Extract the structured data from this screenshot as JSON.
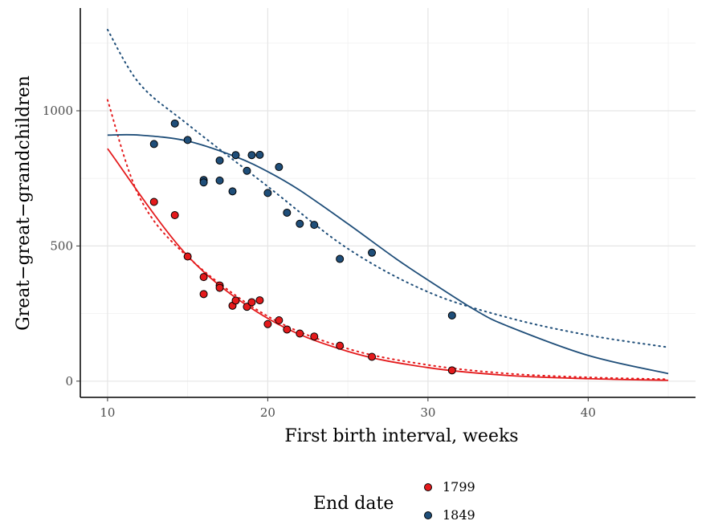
{
  "chart_data": {
    "type": "scatter",
    "xlabel": "First birth interval, weeks",
    "ylabel": "Great−great−grandchildren",
    "xlim": [
      8.3,
      46.7
    ],
    "ylim": [
      -60,
      1380
    ],
    "x_ticks": [
      10,
      20,
      30,
      40
    ],
    "y_ticks": [
      0,
      500,
      1000
    ],
    "grid": true,
    "legend": {
      "title": "End date",
      "position": "bottom",
      "labels": [
        "1799",
        "1849"
      ]
    },
    "series": [
      {
        "name": "1799",
        "color": "#e41a1c",
        "points": [
          {
            "x": 12.9,
            "y": 663
          },
          {
            "x": 14.2,
            "y": 614
          },
          {
            "x": 15.0,
            "y": 461
          },
          {
            "x": 16.0,
            "y": 385
          },
          {
            "x": 16.0,
            "y": 322
          },
          {
            "x": 17.0,
            "y": 354
          },
          {
            "x": 17.0,
            "y": 345
          },
          {
            "x": 17.8,
            "y": 279
          },
          {
            "x": 18.0,
            "y": 298
          },
          {
            "x": 18.7,
            "y": 275
          },
          {
            "x": 19.0,
            "y": 292
          },
          {
            "x": 19.5,
            "y": 299
          },
          {
            "x": 20.0,
            "y": 211
          },
          {
            "x": 20.7,
            "y": 225
          },
          {
            "x": 21.2,
            "y": 191
          },
          {
            "x": 22.0,
            "y": 176
          },
          {
            "x": 22.9,
            "y": 165
          },
          {
            "x": 24.5,
            "y": 131
          },
          {
            "x": 26.5,
            "y": 90
          },
          {
            "x": 31.5,
            "y": 40
          }
        ],
        "fit_solid": {
          "x": [
            10,
            15,
            20,
            25,
            30,
            35,
            40,
            45
          ],
          "y": [
            860,
            463,
            232,
            110,
            50,
            21,
            9,
            3
          ]
        },
        "fit_dotted": {
          "x": [
            10,
            12,
            15,
            20,
            25,
            30,
            35,
            40,
            45
          ],
          "y": [
            1040,
            680,
            460,
            240,
            120,
            60,
            28,
            14,
            7
          ]
        }
      },
      {
        "name": "1849",
        "color": "#1f4e79",
        "points": [
          {
            "x": 12.9,
            "y": 877
          },
          {
            "x": 14.2,
            "y": 953
          },
          {
            "x": 15.0,
            "y": 892
          },
          {
            "x": 16.0,
            "y": 744
          },
          {
            "x": 16.0,
            "y": 735
          },
          {
            "x": 17.0,
            "y": 816
          },
          {
            "x": 17.0,
            "y": 742
          },
          {
            "x": 17.8,
            "y": 702
          },
          {
            "x": 18.0,
            "y": 836
          },
          {
            "x": 18.7,
            "y": 778
          },
          {
            "x": 19.0,
            "y": 836
          },
          {
            "x": 19.5,
            "y": 837
          },
          {
            "x": 20.0,
            "y": 696
          },
          {
            "x": 20.7,
            "y": 792
          },
          {
            "x": 21.2,
            "y": 623
          },
          {
            "x": 22.0,
            "y": 582
          },
          {
            "x": 22.9,
            "y": 578
          },
          {
            "x": 24.5,
            "y": 452
          },
          {
            "x": 26.5,
            "y": 475
          },
          {
            "x": 31.5,
            "y": 243
          }
        ],
        "fit_solid": {
          "x": [
            10,
            12,
            15,
            18,
            20,
            22,
            25,
            28,
            30,
            33,
            35,
            40,
            45
          ],
          "y": [
            910,
            910,
            888,
            830,
            775,
            706,
            582,
            453,
            374,
            261,
            203,
            95,
            28
          ]
        },
        "fit_dotted": {
          "x": [
            10,
            12,
            15,
            20,
            25,
            30,
            35,
            40,
            45
          ],
          "y": [
            1300,
            1100,
            950,
            720,
            490,
            330,
            235,
            170,
            125
          ]
        }
      }
    ]
  }
}
